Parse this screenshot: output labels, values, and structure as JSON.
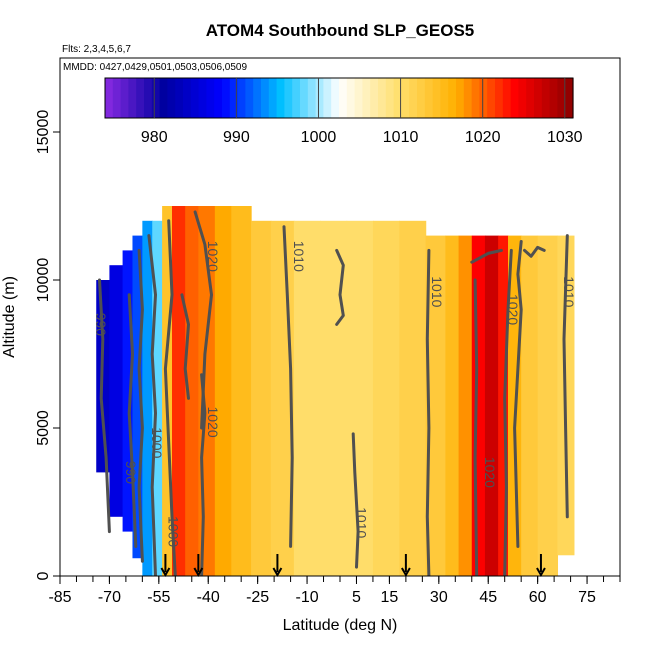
{
  "chart_data": {
    "type": "heatmap",
    "title": "ATOM4 Southbound SLP_GEOS5",
    "subtitle_lines": [
      "Flts: 2,3,4,5,6,7",
      "MMDD: 0427,0429,0501,0503,0506,0509"
    ],
    "xlabel": "Latitude (deg N)",
    "ylabel": "Altitude (m)",
    "xlim": [
      -85,
      85
    ],
    "ylim": [
      0,
      17500
    ],
    "x_tick_labels": [
      "-85",
      "-70",
      "-55",
      "-40",
      "-25",
      "-10",
      "5",
      "15",
      "30",
      "45",
      "60",
      "75"
    ],
    "x_tick_values": [
      -85,
      -70,
      -55,
      -40,
      -25,
      -10,
      5,
      15,
      30,
      45,
      60,
      75
    ],
    "y_tick_labels": [
      "0",
      "5000",
      "10000",
      "15000"
    ],
    "y_tick_values": [
      0,
      5000,
      10000,
      15000
    ],
    "colorbar": {
      "min": 974,
      "max": 1031,
      "tick_labels": [
        "980",
        "990",
        "1000",
        "1010",
        "1020",
        "1030"
      ],
      "tick_values": [
        980,
        990,
        1000,
        1010,
        1020,
        1030
      ],
      "colors": [
        "#8a2be2",
        "#0000a0",
        "#0000ff",
        "#00bfff",
        "#ffffff",
        "#ffe070",
        "#ffb000",
        "#ff0000",
        "#8b0000"
      ]
    },
    "columns": [
      {
        "x0": -74,
        "x1": -70,
        "top": 10000,
        "bottom": 3500,
        "slp": 984
      },
      {
        "x0": -70,
        "x1": -66,
        "top": 10500,
        "bottom": 2000,
        "slp": 986
      },
      {
        "x0": -66,
        "x1": -63,
        "top": 11000,
        "bottom": 1500,
        "slp": 989
      },
      {
        "x0": -63,
        "x1": -60,
        "top": 11500,
        "bottom": 600,
        "slp": 991
      },
      {
        "x0": -60,
        "x1": -57,
        "top": 12000,
        "bottom": 0,
        "slp": 994
      },
      {
        "x0": -57,
        "x1": -54,
        "top": 12000,
        "bottom": 0,
        "slp": 998
      },
      {
        "x0": -54,
        "x1": -51,
        "top": 12500,
        "bottom": 0,
        "slp": 1014
      },
      {
        "x0": -51,
        "x1": -47,
        "top": 12500,
        "bottom": 0,
        "slp": 1022
      },
      {
        "x0": -47,
        "x1": -43,
        "top": 12500,
        "bottom": 0,
        "slp": 1020
      },
      {
        "x0": -43,
        "x1": -38,
        "top": 12500,
        "bottom": 0,
        "slp": 1019
      },
      {
        "x0": -38,
        "x1": -33,
        "top": 12500,
        "bottom": 0,
        "slp": 1017
      },
      {
        "x0": -33,
        "x1": -27,
        "top": 12500,
        "bottom": 0,
        "slp": 1015
      },
      {
        "x0": -27,
        "x1": -21,
        "top": 12000,
        "bottom": 0,
        "slp": 1013
      },
      {
        "x0": -21,
        "x1": -14,
        "top": 12000,
        "bottom": 0,
        "slp": 1012
      },
      {
        "x0": -14,
        "x1": -6,
        "top": 12000,
        "bottom": 0,
        "slp": 1010
      },
      {
        "x0": -6,
        "x1": 2,
        "top": 12000,
        "bottom": 0,
        "slp": 1010
      },
      {
        "x0": 2,
        "x1": 10,
        "top": 12000,
        "bottom": 0,
        "slp": 1010
      },
      {
        "x0": 10,
        "x1": 18,
        "top": 12000,
        "bottom": 0,
        "slp": 1011
      },
      {
        "x0": 18,
        "x1": 26,
        "top": 12000,
        "bottom": 0,
        "slp": 1012
      },
      {
        "x0": 26,
        "x1": 32,
        "top": 11500,
        "bottom": 0,
        "slp": 1013
      },
      {
        "x0": 32,
        "x1": 36,
        "top": 11500,
        "bottom": 0,
        "slp": 1015
      },
      {
        "x0": 36,
        "x1": 40,
        "top": 11500,
        "bottom": 0,
        "slp": 1018
      },
      {
        "x0": 40,
        "x1": 44,
        "top": 11500,
        "bottom": 0,
        "slp": 1024
      },
      {
        "x0": 44,
        "x1": 48,
        "top": 11500,
        "bottom": 0,
        "slp": 1027
      },
      {
        "x0": 48,
        "x1": 51,
        "top": 11500,
        "bottom": 0,
        "slp": 1023
      },
      {
        "x0": 51,
        "x1": 55,
        "top": 11500,
        "bottom": 0,
        "slp": 1016
      },
      {
        "x0": 55,
        "x1": 60,
        "top": 11500,
        "bottom": 0,
        "slp": 1013
      },
      {
        "x0": 60,
        "x1": 66,
        "top": 11500,
        "bottom": 0,
        "slp": 1012
      },
      {
        "x0": 66,
        "x1": 71,
        "top": 11500,
        "bottom": 700,
        "slp": 1011
      }
    ],
    "contours": [
      {
        "label": "1010",
        "label_x": -14,
        "label_y": 10800,
        "points": [
          [
            -17,
            11800
          ],
          [
            -16,
            9500
          ],
          [
            -15,
            7000
          ],
          [
            -14.5,
            4000
          ],
          [
            -15,
            1000
          ]
        ]
      },
      {
        "label": "1010",
        "label_x": 28,
        "label_y": 9600,
        "points": [
          [
            27,
            11000
          ],
          [
            26.5,
            8000
          ],
          [
            27,
            5000
          ],
          [
            26.5,
            2000
          ],
          [
            27,
            0
          ]
        ]
      },
      {
        "label": "1010",
        "label_x": 5,
        "label_y": 1800,
        "points": [
          [
            4,
            4800
          ],
          [
            4.5,
            3500
          ],
          [
            5.5,
            1500
          ],
          [
            5,
            300
          ]
        ]
      },
      {
        "label": "1010",
        "label_x": 68,
        "label_y": 9600,
        "points": [
          [
            69,
            11500
          ],
          [
            68,
            8000
          ],
          [
            68.5,
            5000
          ],
          [
            69,
            2000
          ]
        ]
      },
      {
        "label": "1020",
        "label_x": -40,
        "label_y": 10800,
        "points": [
          [
            -44,
            12300
          ],
          [
            -41,
            11200
          ],
          [
            -39,
            9500
          ],
          [
            -41,
            7500
          ],
          [
            -42,
            5000
          ]
        ]
      },
      {
        "label": "1020",
        "label_x": 51,
        "label_y": 9000,
        "points": [
          [
            52,
            11000
          ],
          [
            51,
            9000
          ],
          [
            50,
            6000
          ],
          [
            50.5,
            3000
          ],
          [
            50,
            0
          ]
        ]
      },
      {
        "label": "1020",
        "label_x": 44,
        "label_y": 3500,
        "points": [
          [
            41,
            10000
          ],
          [
            41.5,
            7000
          ],
          [
            41,
            4000
          ],
          [
            41.5,
            0
          ]
        ]
      },
      {
        "label": "1020",
        "label_x": -40,
        "label_y": 5200,
        "points": [
          [
            -42,
            6800
          ],
          [
            -41,
            5500
          ],
          [
            -42,
            4000
          ],
          [
            -41.5,
            2000
          ],
          [
            -42,
            0
          ]
        ]
      },
      {
        "label": "990",
        "label_x": -74,
        "label_y": 8500,
        "points": [
          [
            -73,
            10000
          ],
          [
            -72,
            8000
          ],
          [
            -72.5,
            6000
          ],
          [
            -71,
            4000
          ],
          [
            -70,
            1500
          ]
        ]
      },
      {
        "label": "990",
        "label_x": -65,
        "label_y": 3500,
        "points": [
          [
            -64,
            9500
          ],
          [
            -63,
            7500
          ],
          [
            -64,
            5500
          ],
          [
            -63,
            3500
          ],
          [
            -62,
            1000
          ]
        ]
      },
      {
        "label": "1000",
        "label_x": -57,
        "label_y": 4500,
        "points": [
          [
            -58,
            11500
          ],
          [
            -56,
            9500
          ],
          [
            -57,
            7500
          ],
          [
            -56,
            5500
          ],
          [
            -57,
            3000
          ],
          [
            -56,
            0
          ]
        ]
      },
      {
        "label": "1000",
        "label_x": -52,
        "label_y": 1500,
        "points": [
          [
            -52,
            12000
          ],
          [
            -51,
            9500
          ],
          [
            -53,
            7000
          ],
          [
            -52,
            4500
          ],
          [
            -51,
            2000
          ],
          [
            -50,
            0
          ]
        ]
      },
      {
        "label": "",
        "label_x": 0,
        "label_y": 0,
        "points": [
          [
            -61,
            11000
          ],
          [
            -60,
            9000
          ],
          [
            -61,
            7000
          ],
          [
            -60,
            5000
          ],
          [
            -61,
            3000
          ],
          [
            -60,
            500
          ]
        ]
      },
      {
        "label": "",
        "label_x": 0,
        "label_y": 0,
        "points": [
          [
            -48,
            9500
          ],
          [
            -46,
            8500
          ],
          [
            -47,
            7000
          ],
          [
            -46,
            6000
          ]
        ]
      },
      {
        "label": "",
        "label_x": 0,
        "label_y": 0,
        "points": [
          [
            -1,
            11000
          ],
          [
            1,
            10500
          ],
          [
            0,
            9500
          ],
          [
            1,
            8800
          ],
          [
            -1,
            8500
          ]
        ]
      },
      {
        "label": "",
        "label_x": 0,
        "label_y": 0,
        "points": [
          [
            40,
            10600
          ],
          [
            45,
            10900
          ],
          [
            49,
            11000
          ]
        ]
      },
      {
        "label": "",
        "label_x": 0,
        "label_y": 0,
        "points": [
          [
            55,
            11300
          ],
          [
            54,
            10200
          ],
          [
            55,
            9000
          ],
          [
            53,
            5000
          ],
          [
            54,
            1000
          ]
        ]
      },
      {
        "label": "",
        "label_x": 0,
        "label_y": 0,
        "points": [
          [
            56,
            11000
          ],
          [
            58,
            10800
          ],
          [
            60,
            11100
          ],
          [
            62,
            11000
          ]
        ]
      }
    ],
    "flight_markers_x": [
      -53,
      -43,
      -19,
      20,
      61
    ]
  }
}
